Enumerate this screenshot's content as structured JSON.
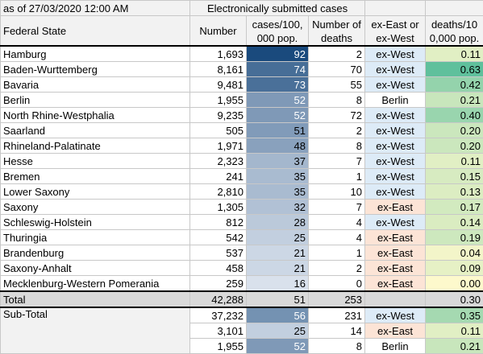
{
  "header": {
    "as_of": "as of 27/03/2020 12:00 AM",
    "group": "Electronically submitted cases",
    "columns": [
      "Federal State",
      "Number",
      "cases/100,000 pop.",
      "Number of deaths",
      "ex-East or ex-West",
      "deaths/100,000 pop."
    ]
  },
  "rows": [
    {
      "state": "Hamburg",
      "number": "1,693",
      "cases": "92",
      "deaths": "2",
      "region": "ex-West",
      "region_color": "#ddebf7",
      "rate": "0.11"
    },
    {
      "state": "Baden-Wurttemberg",
      "number": "8,161",
      "cases": "74",
      "deaths": "70",
      "region": "ex-West",
      "region_color": "#ddebf7",
      "rate": "0.63"
    },
    {
      "state": "Bavaria",
      "number": "9,481",
      "cases": "73",
      "deaths": "55",
      "region": "ex-West",
      "region_color": "#ddebf7",
      "rate": "0.42"
    },
    {
      "state": "Berlin",
      "number": "1,955",
      "cases": "52",
      "deaths": "8",
      "region": "Berlin",
      "region_color": "#ffffff",
      "rate": "0.21"
    },
    {
      "state": "North Rhine-Westphalia",
      "number": "9,235",
      "cases": "52",
      "deaths": "72",
      "region": "ex-West",
      "region_color": "#ddebf7",
      "rate": "0.40"
    },
    {
      "state": "Saarland",
      "number": "505",
      "cases": "51",
      "deaths": "2",
      "region": "ex-West",
      "region_color": "#ddebf7",
      "rate": "0.20"
    },
    {
      "state": "Rhineland-Palatinate",
      "number": "1,971",
      "cases": "48",
      "deaths": "8",
      "region": "ex-West",
      "region_color": "#ddebf7",
      "rate": "0.20"
    },
    {
      "state": "Hesse",
      "number": "2,323",
      "cases": "37",
      "deaths": "7",
      "region": "ex-West",
      "region_color": "#ddebf7",
      "rate": "0.11"
    },
    {
      "state": "Bremen",
      "number": "241",
      "cases": "35",
      "deaths": "1",
      "region": "ex-West",
      "region_color": "#ddebf7",
      "rate": "0.15"
    },
    {
      "state": "Lower Saxony",
      "number": "2,810",
      "cases": "35",
      "deaths": "10",
      "region": "ex-West",
      "region_color": "#ddebf7",
      "rate": "0.13"
    },
    {
      "state": "Saxony",
      "number": "1,305",
      "cases": "32",
      "deaths": "7",
      "region": "ex-East",
      "region_color": "#fce4d6",
      "rate": "0.17"
    },
    {
      "state": "Schleswig-Holstein",
      "number": "812",
      "cases": "28",
      "deaths": "4",
      "region": "ex-West",
      "region_color": "#ddebf7",
      "rate": "0.14"
    },
    {
      "state": "Thuringia",
      "number": "542",
      "cases": "25",
      "deaths": "4",
      "region": "ex-East",
      "region_color": "#fce4d6",
      "rate": "0.19"
    },
    {
      "state": "Brandenburg",
      "number": "537",
      "cases": "21",
      "deaths": "1",
      "region": "ex-East",
      "region_color": "#fce4d6",
      "rate": "0.04"
    },
    {
      "state": "Saxony-Anhalt",
      "number": "458",
      "cases": "21",
      "deaths": "2",
      "region": "ex-East",
      "region_color": "#fce4d6",
      "rate": "0.09"
    },
    {
      "state": "Mecklenburg-Western Pomerania",
      "number": "259",
      "cases": "16",
      "deaths": "0",
      "region": "ex-East",
      "region_color": "#fce4d6",
      "rate": "0.00"
    }
  ],
  "total": {
    "label": "Total",
    "number": "42,288",
    "cases": "51",
    "deaths": "253",
    "rate": "0.30"
  },
  "subtotal": {
    "label": "Sub-Total",
    "rows": [
      {
        "number": "37,232",
        "cases": "56",
        "deaths": "231",
        "region": "ex-West",
        "region_color": "#ddebf7",
        "rate": "0.35"
      },
      {
        "number": "3,101",
        "cases": "25",
        "deaths": "14",
        "region": "ex-East",
        "region_color": "#fce4d6",
        "rate": "0.11"
      },
      {
        "number": "1,955",
        "cases": "52",
        "deaths": "8",
        "region": "Berlin",
        "region_color": "#ffffff",
        "rate": "0.21"
      }
    ]
  },
  "scales": {
    "cases_low": "#d9e1ec",
    "cases_high": "#1a4a7d",
    "rate_low": "#fdf9cc",
    "rate_high": "#5fc09c"
  }
}
